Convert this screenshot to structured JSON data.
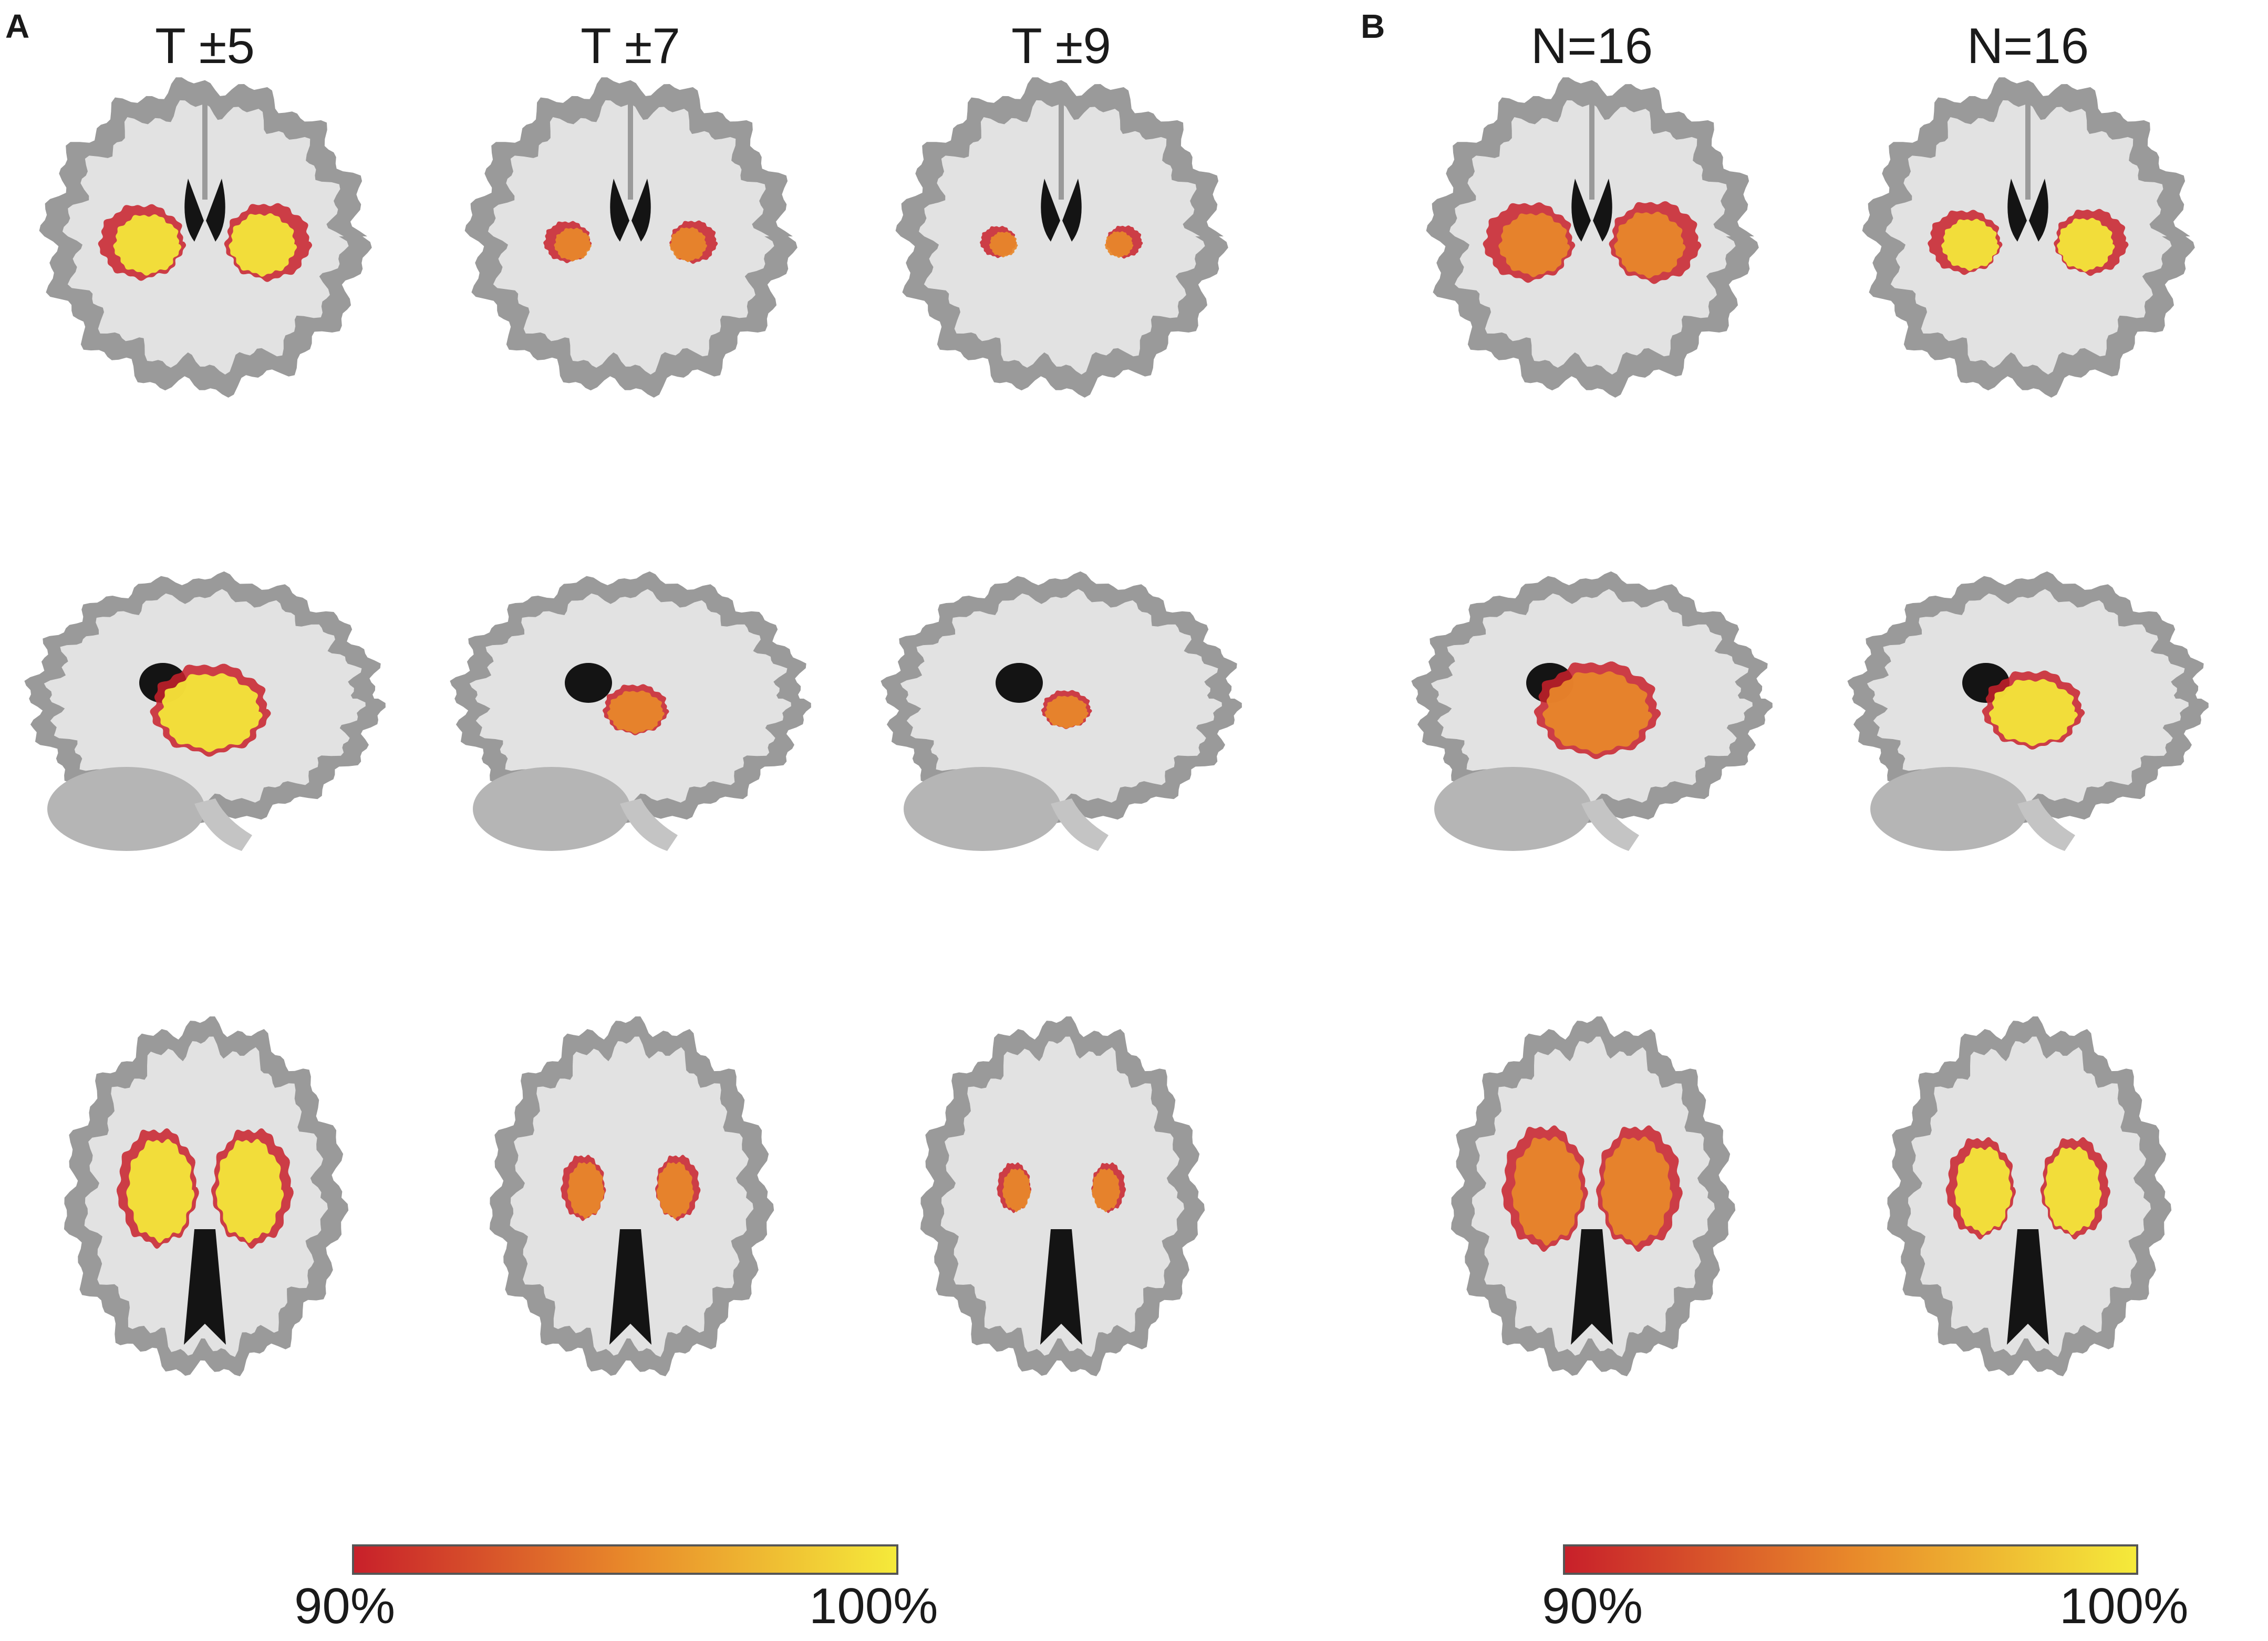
{
  "panel_a": {
    "letter": "A",
    "columns": [
      {
        "title": "T ±5"
      },
      {
        "title": "T ±7"
      },
      {
        "title": "T ±9"
      }
    ],
    "colorbar": {
      "min_label": "90%",
      "max_label": "100%"
    }
  },
  "panel_b": {
    "letter": "B",
    "columns": [
      {
        "title": "N=16"
      },
      {
        "title": "N=16"
      }
    ],
    "colorbar": {
      "min_label": "90%",
      "max_label": "100%"
    }
  },
  "colors": {
    "low": "#c8202a",
    "mid": "#e8882a",
    "high": "#f5ea3a",
    "brain_white": "#e2e2e2",
    "brain_gray": "#9a9a9a",
    "ventricle": "#141414"
  },
  "views": [
    "coronal",
    "sagittal",
    "axial"
  ]
}
